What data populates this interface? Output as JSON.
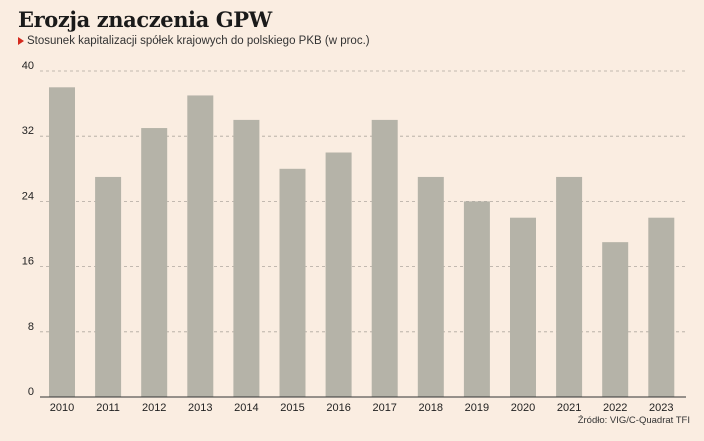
{
  "chart_data": {
    "type": "bar",
    "title": "Erozja znaczenia GPW",
    "subtitle": "Stosunek kapitalizacji spółek krajowych do polskiego PKB (w proc.)",
    "source": "Źródło: VIG/C-Quadrat TFI",
    "categories": [
      "2010",
      "2011",
      "2012",
      "2013",
      "2014",
      "2015",
      "2016",
      "2017",
      "2018",
      "2019",
      "2020",
      "2021",
      "2022",
      "2023"
    ],
    "values": [
      38,
      27,
      33,
      37,
      34,
      28,
      30,
      34,
      27,
      24,
      22,
      27,
      19,
      22
    ],
    "ylim": [
      0,
      40
    ],
    "yticks": [
      "0",
      "8",
      "16",
      "24",
      "32",
      "40"
    ],
    "grid": true,
    "colors": {
      "bar": "#B5B3A8",
      "grid": "#AFA8A0",
      "axis": "#333333",
      "background": "#FAEDE1",
      "accent": "#D42A1E"
    }
  }
}
